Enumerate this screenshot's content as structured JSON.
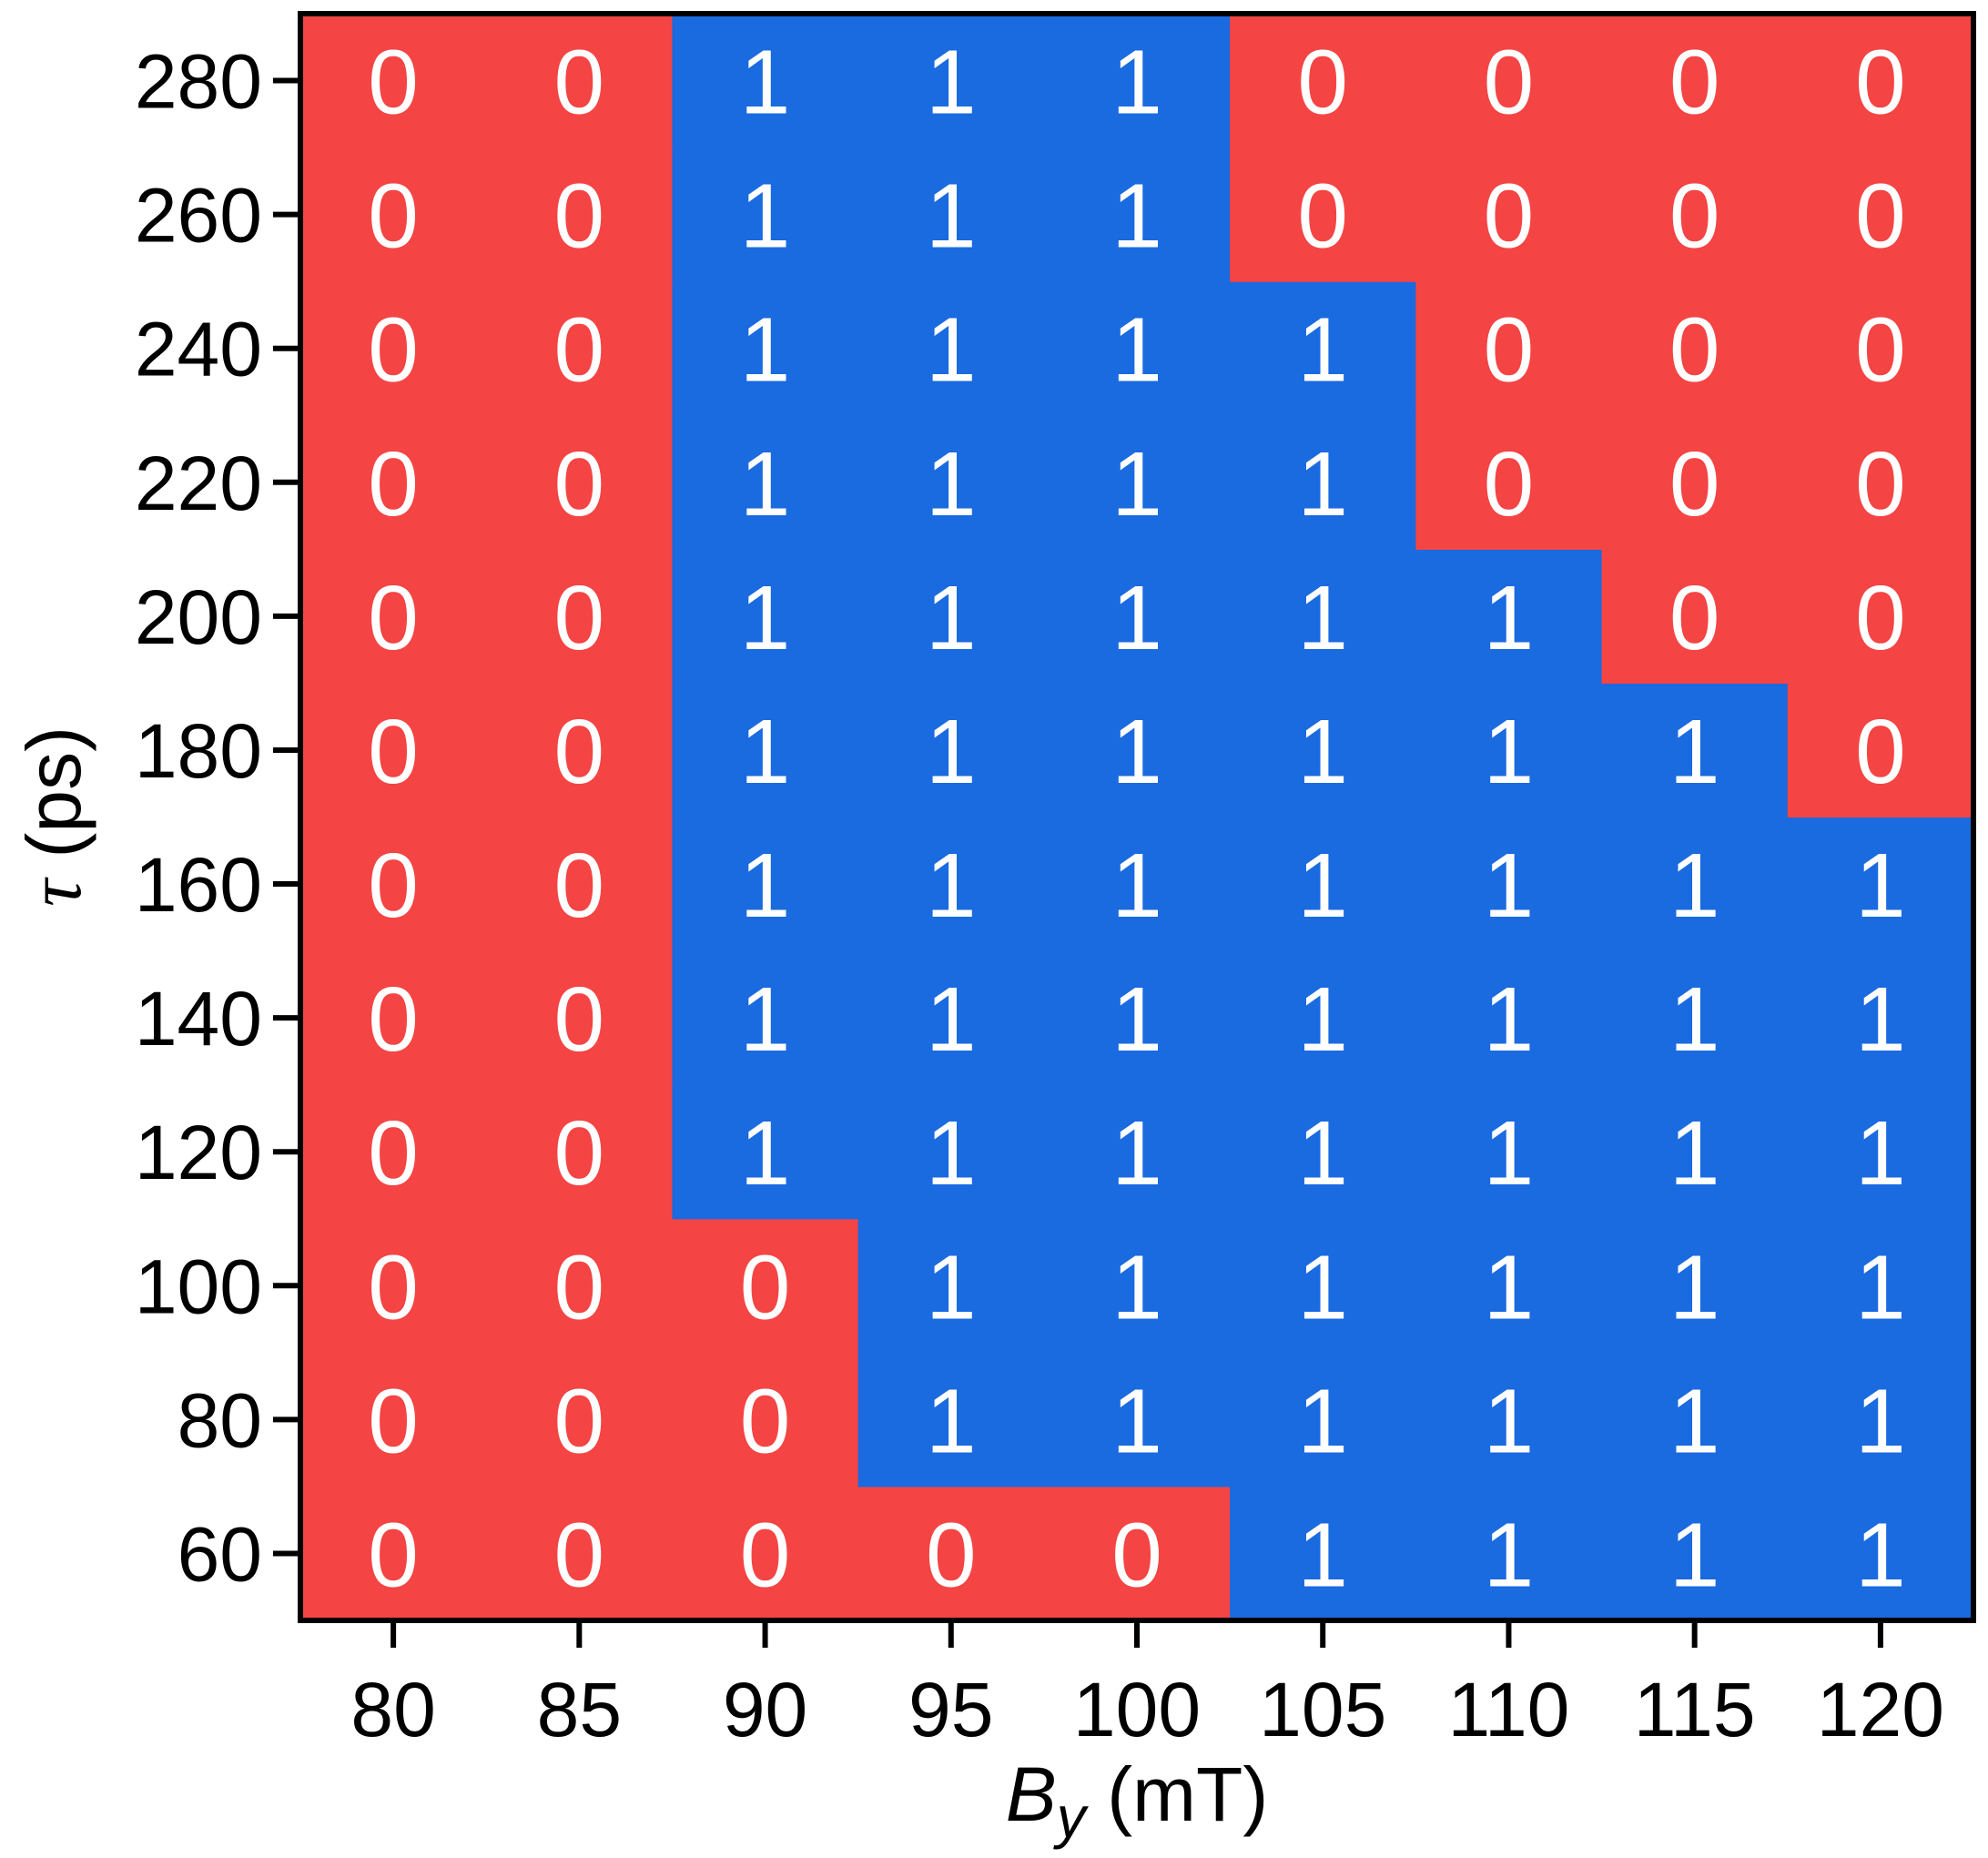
{
  "chart_data": {
    "type": "heatmap",
    "title": "",
    "xlabel_main": "B",
    "xlabel_sub": "y",
    "xlabel_unit": "(mT)",
    "ylabel_main": "τ",
    "ylabel_unit": "(ps)",
    "x": [
      "80",
      "85",
      "90",
      "95",
      "100",
      "105",
      "110",
      "115",
      "120"
    ],
    "y": [
      "60",
      "80",
      "100",
      "120",
      "140",
      "160",
      "180",
      "200",
      "220",
      "240",
      "260",
      "280"
    ],
    "values": [
      [
        0,
        0,
        0,
        0,
        0,
        1,
        1,
        1,
        1
      ],
      [
        0,
        0,
        0,
        1,
        1,
        1,
        1,
        1,
        1
      ],
      [
        0,
        0,
        0,
        1,
        1,
        1,
        1,
        1,
        1
      ],
      [
        0,
        0,
        1,
        1,
        1,
        1,
        1,
        1,
        1
      ],
      [
        0,
        0,
        1,
        1,
        1,
        1,
        1,
        1,
        1
      ],
      [
        0,
        0,
        1,
        1,
        1,
        1,
        1,
        1,
        1
      ],
      [
        0,
        0,
        1,
        1,
        1,
        1,
        1,
        1,
        0
      ],
      [
        0,
        0,
        1,
        1,
        1,
        1,
        1,
        0,
        0
      ],
      [
        0,
        0,
        1,
        1,
        1,
        1,
        0,
        0,
        0
      ],
      [
        0,
        0,
        1,
        1,
        1,
        1,
        0,
        0,
        0
      ],
      [
        0,
        0,
        1,
        1,
        1,
        0,
        0,
        0,
        0
      ],
      [
        0,
        0,
        1,
        1,
        1,
        0,
        0,
        0,
        0
      ]
    ],
    "colors": {
      "0": "#f44444",
      "1": "#1a6ae0"
    },
    "cell_text_color": "#ffffff",
    "grid": false,
    "legend": "none"
  }
}
